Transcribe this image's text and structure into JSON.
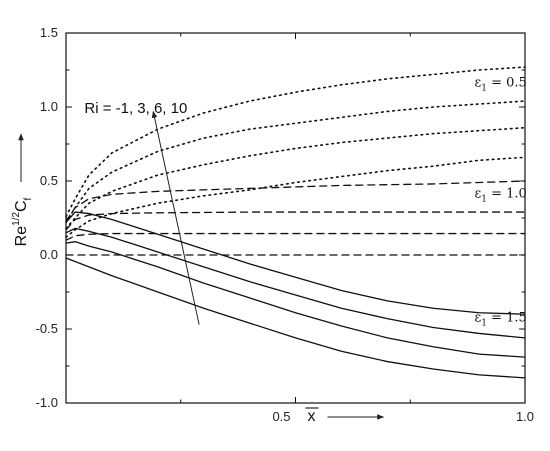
{
  "chart_data": {
    "type": "line",
    "xlim": [
      0,
      1.0
    ],
    "ylim": [
      -1.0,
      1.5
    ],
    "x_ticks": [
      {
        "v": 0.5,
        "label": "0.5"
      },
      {
        "v": 1.0,
        "label": "1.0"
      }
    ],
    "y_ticks": [
      {
        "v": 1.5,
        "label": "1.5"
      },
      {
        "v": 1.0,
        "label": "1.0"
      },
      {
        "v": 0.5,
        "label": "0.5"
      },
      {
        "v": 0.0,
        "label": "0.0"
      },
      {
        "v": -0.5,
        "label": "-0.5"
      },
      {
        "v": -1.0,
        "label": "-1.0"
      }
    ],
    "x_minor_ticks": [
      0.25,
      0.75
    ],
    "y_minor_ticks": [
      1.25,
      0.75,
      0.25,
      -0.25,
      -0.75
    ],
    "xlabel": {
      "prefix": "0.5",
      "symbol": "x"
    },
    "ylabel": {
      "base": "Re",
      "sup": "1/2",
      "symbol": "C",
      "sub": "f"
    },
    "annotation": "Ri = -1, 3, 6, 10",
    "annotation_arrow": {
      "from": [
        0.29,
        -0.47
      ],
      "to": [
        0.19,
        0.97
      ]
    },
    "epsilon_labels": [
      {
        "symbol": "ε",
        "sub": "1",
        "text": " = 0.5",
        "x": 0.89,
        "y": 1.14
      },
      {
        "symbol": "ε",
        "sub": "1",
        "text": " = 1.0",
        "x": 0.89,
        "y": 0.39
      },
      {
        "symbol": "ε",
        "sub": "1",
        "text": " = 1.5",
        "x": 0.89,
        "y": -0.45
      }
    ],
    "series": [
      {
        "group": "ε1 = 0.5",
        "Ri": -1,
        "style": "dotted",
        "x": [
          0.0,
          0.02,
          0.05,
          0.1,
          0.2,
          0.3,
          0.4,
          0.5,
          0.6,
          0.7,
          0.8,
          0.9,
          1.0
        ],
        "y": [
          0.12,
          0.17,
          0.23,
          0.28,
          0.35,
          0.4,
          0.44,
          0.49,
          0.53,
          0.57,
          0.6,
          0.64,
          0.66
        ]
      },
      {
        "group": "ε1 = 0.5",
        "Ri": 3,
        "style": "dotted",
        "x": [
          0.0,
          0.02,
          0.05,
          0.1,
          0.2,
          0.3,
          0.4,
          0.5,
          0.6,
          0.7,
          0.8,
          0.9,
          1.0
        ],
        "y": [
          0.18,
          0.25,
          0.35,
          0.43,
          0.54,
          0.61,
          0.67,
          0.72,
          0.76,
          0.79,
          0.82,
          0.84,
          0.86
        ]
      },
      {
        "group": "ε1 = 0.5",
        "Ri": 6,
        "style": "dotted",
        "x": [
          0.0,
          0.02,
          0.05,
          0.1,
          0.2,
          0.3,
          0.4,
          0.5,
          0.6,
          0.7,
          0.8,
          0.9,
          1.0
        ],
        "y": [
          0.22,
          0.32,
          0.45,
          0.56,
          0.7,
          0.79,
          0.85,
          0.89,
          0.93,
          0.97,
          1.0,
          1.02,
          1.04
        ]
      },
      {
        "group": "ε1 = 0.5",
        "Ri": 10,
        "style": "dotted",
        "x": [
          0.0,
          0.02,
          0.05,
          0.1,
          0.2,
          0.3,
          0.4,
          0.5,
          0.6,
          0.7,
          0.8,
          0.9,
          1.0
        ],
        "y": [
          0.26,
          0.38,
          0.54,
          0.69,
          0.85,
          0.96,
          1.04,
          1.1,
          1.15,
          1.19,
          1.22,
          1.25,
          1.27
        ]
      },
      {
        "group": "ε1 = 1.0",
        "Ri": -1,
        "style": "dashed",
        "x": [
          0.0,
          0.02,
          0.05,
          0.1,
          0.2,
          0.4,
          0.6,
          0.8,
          1.0
        ],
        "y": [
          0.0,
          0.0,
          0.0,
          0.0,
          0.0,
          0.0,
          0.0,
          0.0,
          0.0
        ]
      },
      {
        "group": "ε1 = 1.0",
        "Ri": 3,
        "style": "dashed",
        "x": [
          0.0,
          0.02,
          0.05,
          0.1,
          0.2,
          0.4,
          0.6,
          0.8,
          1.0
        ],
        "y": [
          0.1,
          0.13,
          0.14,
          0.145,
          0.145,
          0.145,
          0.145,
          0.145,
          0.145
        ]
      },
      {
        "group": "ε1 = 1.0",
        "Ri": 6,
        "style": "dashed",
        "x": [
          0.0,
          0.02,
          0.05,
          0.1,
          0.2,
          0.4,
          0.6,
          0.8,
          1.0
        ],
        "y": [
          0.17,
          0.24,
          0.27,
          0.28,
          0.285,
          0.29,
          0.29,
          0.29,
          0.29
        ]
      },
      {
        "group": "ε1 = 1.0",
        "Ri": 10,
        "style": "dashed",
        "x": [
          0.0,
          0.02,
          0.05,
          0.1,
          0.2,
          0.4,
          0.6,
          0.8,
          1.0
        ],
        "y": [
          0.23,
          0.32,
          0.38,
          0.41,
          0.43,
          0.45,
          0.47,
          0.48,
          0.5
        ]
      },
      {
        "group": "ε1 = 1.5",
        "Ri": -1,
        "style": "solid",
        "x": [
          0.0,
          0.05,
          0.1,
          0.2,
          0.3,
          0.4,
          0.5,
          0.6,
          0.7,
          0.8,
          0.9,
          1.0
        ],
        "y": [
          -0.02,
          -0.08,
          -0.14,
          -0.25,
          -0.36,
          -0.46,
          -0.56,
          -0.65,
          -0.72,
          -0.77,
          -0.81,
          -0.83
        ]
      },
      {
        "group": "ε1 = 1.5",
        "Ri": 3,
        "style": "solid",
        "x": [
          0.0,
          0.02,
          0.05,
          0.1,
          0.2,
          0.3,
          0.4,
          0.5,
          0.6,
          0.7,
          0.8,
          0.9,
          1.0
        ],
        "y": [
          0.08,
          0.09,
          0.06,
          0.02,
          -0.08,
          -0.19,
          -0.29,
          -0.39,
          -0.48,
          -0.56,
          -0.62,
          -0.67,
          -0.69
        ]
      },
      {
        "group": "ε1 = 1.5",
        "Ri": 6,
        "style": "solid",
        "x": [
          0.0,
          0.02,
          0.05,
          0.1,
          0.2,
          0.3,
          0.4,
          0.5,
          0.6,
          0.7,
          0.8,
          0.9,
          1.0
        ],
        "y": [
          0.15,
          0.18,
          0.16,
          0.12,
          0.02,
          -0.08,
          -0.18,
          -0.27,
          -0.36,
          -0.43,
          -0.49,
          -0.53,
          -0.56
        ]
      },
      {
        "group": "ε1 = 1.5",
        "Ri": 10,
        "style": "solid",
        "x": [
          0.0,
          0.02,
          0.05,
          0.1,
          0.2,
          0.3,
          0.4,
          0.5,
          0.6,
          0.7,
          0.8,
          0.9,
          1.0
        ],
        "y": [
          0.22,
          0.29,
          0.28,
          0.24,
          0.14,
          0.04,
          -0.06,
          -0.15,
          -0.24,
          -0.31,
          -0.36,
          -0.39,
          -0.4
        ]
      }
    ]
  }
}
